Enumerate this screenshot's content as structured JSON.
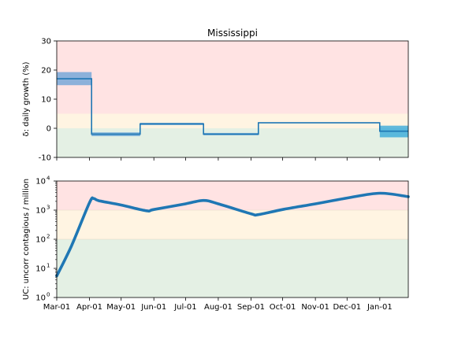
{
  "chart_data": [
    {
      "type": "line",
      "title": "Mississippi",
      "ylabel": "δ: daily growth (%)",
      "xlabel": "",
      "ylim": [
        -10,
        30
      ],
      "yticks": [
        -10,
        0,
        10,
        20,
        30
      ],
      "xrange": [
        "2020-03-01",
        "2021-01-28"
      ],
      "grid": false,
      "zones": [
        {
          "from": 5,
          "to": 30,
          "color": "#ffe3e3"
        },
        {
          "from": 0,
          "to": 5,
          "color": "#fff4e2"
        },
        {
          "from": -10,
          "to": 0,
          "color": "#e4f0e4"
        }
      ],
      "segments": [
        {
          "start": "2020-03-01",
          "end": "2020-04-03",
          "value": 17.0,
          "low": 14.8,
          "high": 19.3
        },
        {
          "start": "2020-04-03",
          "end": "2020-05-19",
          "value": -2.0,
          "low": -2.7,
          "high": -1.4
        },
        {
          "start": "2020-05-19",
          "end": "2020-07-18",
          "value": 1.5,
          "low": 1.1,
          "high": 1.9
        },
        {
          "start": "2020-07-18",
          "end": "2020-09-08",
          "value": -2.0,
          "low": -2.4,
          "high": -1.6
        },
        {
          "start": "2020-09-08",
          "end": "2021-01-01",
          "value": 1.9,
          "low": 1.7,
          "high": 2.1
        },
        {
          "start": "2021-01-01",
          "end": "2021-01-28",
          "value": -1.0,
          "low": -3.1,
          "high": 0.9
        }
      ],
      "line_color": "#1f77b4",
      "band_colors": [
        "#5b9bd5",
        "#1fa0d8"
      ]
    },
    {
      "type": "line",
      "title": "",
      "ylabel": "UC: uncorr contagious / million",
      "xlabel": "",
      "yscale": "log",
      "ylim": [
        1,
        10000
      ],
      "yticks": [
        1,
        10,
        100,
        1000,
        10000
      ],
      "ytick_labels": [
        {
          "base": "10",
          "exp": "0"
        },
        {
          "base": "10",
          "exp": "1"
        },
        {
          "base": "10",
          "exp": "2"
        },
        {
          "base": "10",
          "exp": "3"
        },
        {
          "base": "10",
          "exp": "4"
        }
      ],
      "xticks": [
        "2020-03-01",
        "2020-04-01",
        "2020-05-01",
        "2020-06-01",
        "2020-07-01",
        "2020-08-01",
        "2020-09-01",
        "2020-10-01",
        "2020-11-01",
        "2020-12-01",
        "2021-01-01"
      ],
      "xtick_labels": [
        "Mar-01",
        "Apr-01",
        "May-01",
        "Jun-01",
        "Jul-01",
        "Aug-01",
        "Sep-01",
        "Oct-01",
        "Nov-01",
        "Dec-01",
        "Jan-01"
      ],
      "xrange": [
        "2020-03-01",
        "2021-01-28"
      ],
      "grid": false,
      "zones": [
        {
          "from": 1000,
          "to": 10000,
          "color": "#ffe3e3"
        },
        {
          "from": 100,
          "to": 1000,
          "color": "#fff4e2"
        },
        {
          "from": 1,
          "to": 100,
          "color": "#e4f0e4"
        }
      ],
      "series": [
        {
          "color": "#1f77b4",
          "x": [
            "2020-03-01",
            "2020-03-15",
            "2020-04-01",
            "2020-04-05",
            "2020-04-10",
            "2020-05-01",
            "2020-05-25",
            "2020-06-01",
            "2020-07-01",
            "2020-07-18",
            "2020-08-01",
            "2020-09-01",
            "2020-09-08",
            "2020-10-01",
            "2020-11-01",
            "2020-12-01",
            "2021-01-01",
            "2021-01-28"
          ],
          "y": [
            5.5,
            60,
            1800,
            2500,
            2100,
            1500,
            950,
            1050,
            1650,
            2150,
            1650,
            750,
            700,
            1050,
            1650,
            2600,
            3800,
            2900
          ]
        }
      ]
    }
  ]
}
